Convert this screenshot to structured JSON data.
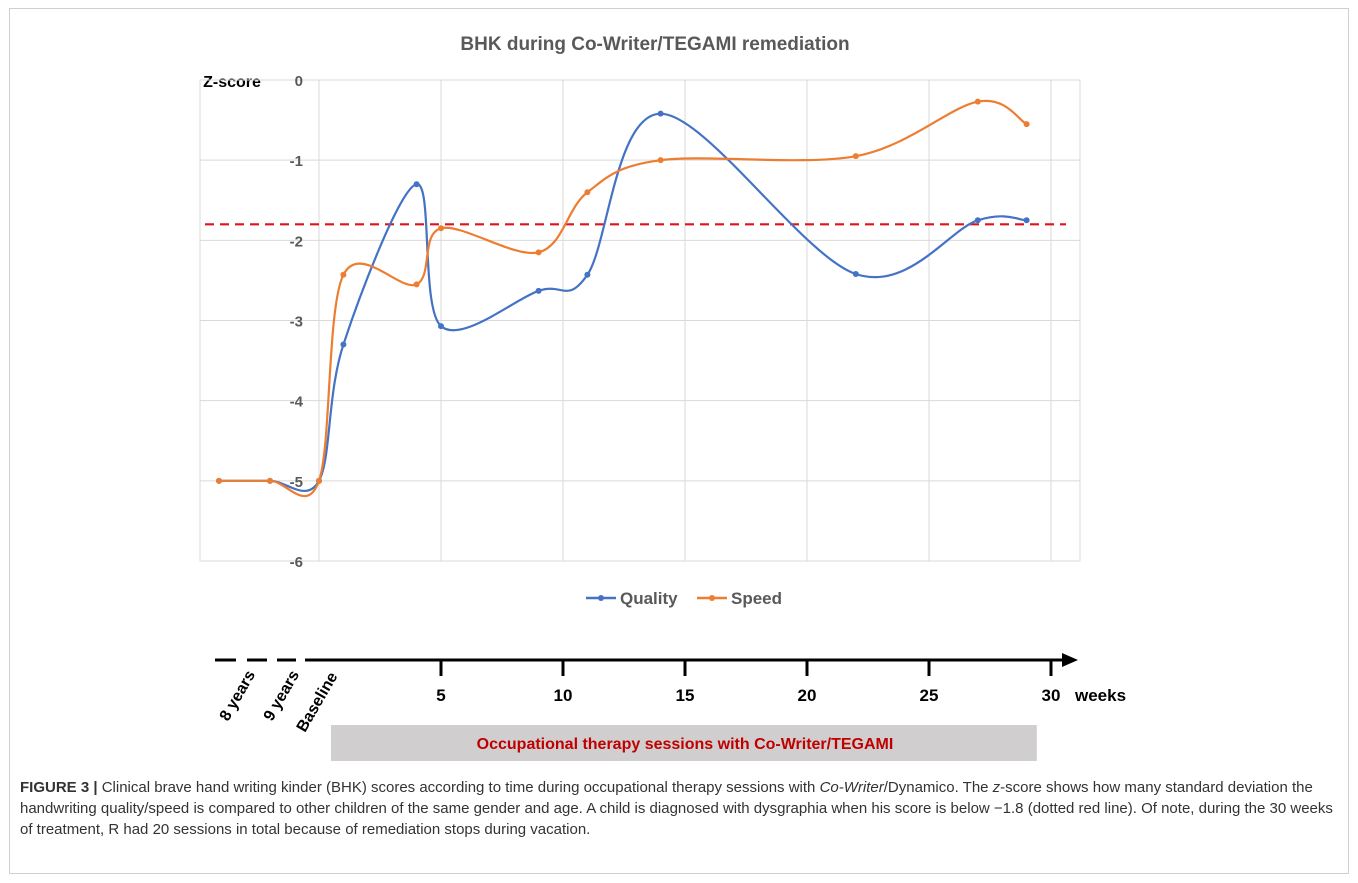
{
  "chart_data": {
    "type": "line",
    "title": "BHK during Co-Writer/TEGAMI remediation",
    "ylabel": "Z-score",
    "ylim": [
      -6,
      0
    ],
    "yticks": [
      0,
      -1,
      -2,
      -3,
      -4,
      -5,
      -6
    ],
    "grid": true,
    "legend_position": "bottom",
    "threshold": {
      "value": -1.8,
      "color": "#e0121b",
      "style": "dashed"
    },
    "series": [
      {
        "name": "Quality",
        "color": "#4472c4",
        "points": [
          {
            "x": "8 years",
            "y": -5.0
          },
          {
            "x": "9 years",
            "y": -5.0
          },
          {
            "x": 0,
            "y": -5.0
          },
          {
            "x": 1,
            "y": -3.3
          },
          {
            "x": 4,
            "y": -1.3
          },
          {
            "x": 5,
            "y": -3.07
          },
          {
            "x": 9,
            "y": -2.63
          },
          {
            "x": 11,
            "y": -2.43
          },
          {
            "x": 14,
            "y": -0.42
          },
          {
            "x": 22,
            "y": -2.42
          },
          {
            "x": 27,
            "y": -1.75
          },
          {
            "x": 29,
            "y": -1.75
          }
        ]
      },
      {
        "name": "Speed",
        "color": "#ed7d31",
        "points": [
          {
            "x": "8 years",
            "y": -5.0
          },
          {
            "x": "9 years",
            "y": -5.0
          },
          {
            "x": 0,
            "y": -5.0
          },
          {
            "x": 1,
            "y": -2.43
          },
          {
            "x": 4,
            "y": -2.55
          },
          {
            "x": 5,
            "y": -1.85
          },
          {
            "x": 9,
            "y": -2.15
          },
          {
            "x": 11,
            "y": -1.4
          },
          {
            "x": 14,
            "y": -1.0
          },
          {
            "x": 22,
            "y": -0.95
          },
          {
            "x": 27,
            "y": -0.27
          },
          {
            "x": 29,
            "y": -0.55
          }
        ]
      }
    ],
    "timeline": {
      "age_labels": [
        "8 years",
        "9 years",
        "Baseline"
      ],
      "week_ticks": [
        5,
        10,
        15,
        20,
        25,
        30
      ],
      "unit": "weeks",
      "therapy_label": "Occupational therapy sessions with Co-Writer/TEGAMI",
      "therapy_range_weeks": [
        0,
        29.5
      ]
    }
  },
  "caption": {
    "lead": "FIGURE 3 |",
    "part1": " Clinical brave hand writing kinder (BHK) scores according to time during occupational therapy sessions with ",
    "em1": "Co-Writer",
    "part2": "/Dynamico. The ",
    "em2": "z",
    "part3": "-score shows how many standard deviation the handwriting quality/speed is compared to other children of the same gender and age. A child is diagnosed with dysgraphia when his score is below −1.8 (dotted red line). Of note, during the 30 weeks of treatment, R had 20 sessions in total because of remediation stops during vacation."
  }
}
